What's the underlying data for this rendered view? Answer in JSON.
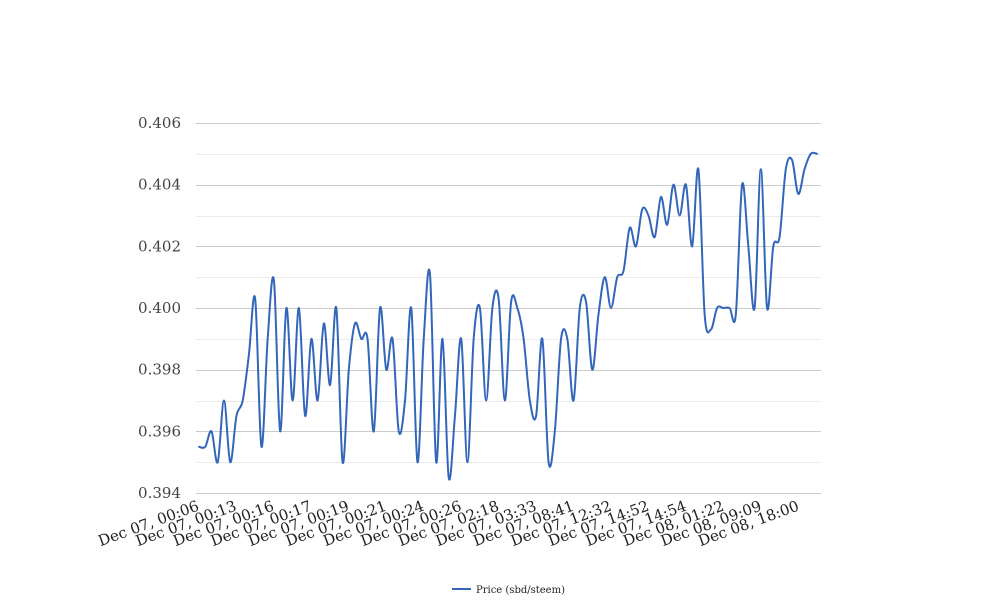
{
  "chart_data": {
    "type": "line",
    "title": "",
    "xlabel": "",
    "ylabel": "",
    "ylim": [
      0.394,
      0.406
    ],
    "y_ticks": [
      "0.394",
      "0.396",
      "0.398",
      "0.400",
      "0.402",
      "0.404",
      "0.406"
    ],
    "x_tick_labels": [
      "Dec 07, 00:06",
      "Dec 07, 00:13",
      "Dec 07, 00:16",
      "Dec 07, 00:17",
      "Dec 07, 00:19",
      "Dec 07, 00:21",
      "Dec 07, 00:24",
      "Dec 07, 00:26",
      "Dec 07, 02:18",
      "Dec 07, 03:33",
      "Dec 07, 08:41",
      "Dec 07, 12:32",
      "Dec 07, 14:52",
      "Dec 07, 14:54",
      "Dec 08, 01:22",
      "Dec 08, 09:09",
      "Dec 08, 18:00"
    ],
    "grid": true,
    "minor_grid": true,
    "legend_position": "bottom-center",
    "series": [
      {
        "name": "Price (sbd/steem)",
        "color": "#3366bb",
        "values": [
          0.3955,
          0.3955,
          0.396,
          0.395,
          0.397,
          0.395,
          0.3965,
          0.397,
          0.3985,
          0.4003,
          0.3955,
          0.399,
          0.4009,
          0.396,
          0.4,
          0.397,
          0.4,
          0.3965,
          0.399,
          0.397,
          0.3995,
          0.3975,
          0.4,
          0.395,
          0.398,
          0.3995,
          0.399,
          0.399,
          0.396,
          0.4,
          0.398,
          0.399,
          0.396,
          0.397,
          0.4,
          0.395,
          0.399,
          0.4011,
          0.395,
          0.399,
          0.3945,
          0.3965,
          0.399,
          0.395,
          0.399,
          0.4,
          0.397,
          0.4,
          0.4003,
          0.397,
          0.4002,
          0.4,
          0.399,
          0.397,
          0.3965,
          0.399,
          0.395,
          0.396,
          0.399,
          0.399,
          0.397,
          0.4,
          0.4002,
          0.398,
          0.3998,
          0.401,
          0.4,
          0.401,
          0.4012,
          0.4026,
          0.402,
          0.4032,
          0.403,
          0.4023,
          0.4036,
          0.4027,
          0.404,
          0.403,
          0.404,
          0.402,
          0.4045,
          0.3998,
          0.3993,
          0.4,
          0.4,
          0.4,
          0.3998,
          0.404,
          0.402,
          0.4,
          0.4045,
          0.4,
          0.402,
          0.4023,
          0.4045,
          0.4048,
          0.4037,
          0.4045,
          0.405,
          0.405
        ]
      }
    ]
  }
}
